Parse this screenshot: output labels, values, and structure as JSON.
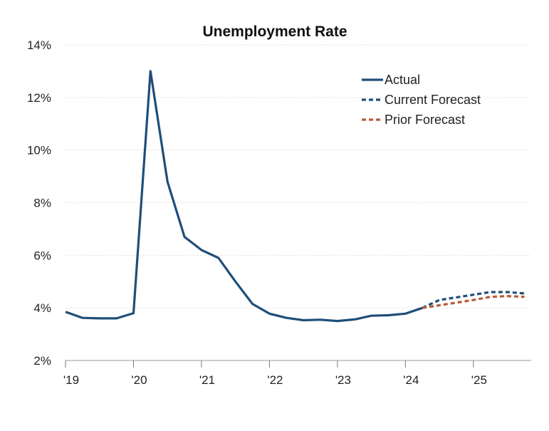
{
  "chart_data": {
    "type": "line",
    "title": "Unemployment Rate",
    "xlabel": "",
    "ylabel": "",
    "ylim": [
      2,
      14
    ],
    "xlim": [
      2019.0,
      2025.85
    ],
    "y_ticks": [
      2,
      4,
      6,
      8,
      10,
      12,
      14
    ],
    "y_tick_labels": [
      "2%",
      "4%",
      "6%",
      "8%",
      "10%",
      "12%",
      "14%"
    ],
    "x_ticks": [
      2019,
      2020,
      2021,
      2022,
      2023,
      2024,
      2025
    ],
    "x_tick_labels": [
      "'19",
      "'20",
      "'21",
      "'22",
      "'23",
      "'24",
      "'25"
    ],
    "grid": "horizontal",
    "legend_position": "top-right",
    "series": [
      {
        "name": "Actual",
        "color": "#1f4e79",
        "style": "solid",
        "x": [
          2019.0,
          2019.25,
          2019.5,
          2019.75,
          2020.0,
          2020.25,
          2020.5,
          2020.75,
          2021.0,
          2021.25,
          2021.5,
          2021.75,
          2022.0,
          2022.25,
          2022.5,
          2022.75,
          2023.0,
          2023.25,
          2023.5,
          2023.75,
          2024.0,
          2024.25
        ],
        "y": [
          3.85,
          3.62,
          3.6,
          3.6,
          3.8,
          13.0,
          8.8,
          6.7,
          6.2,
          5.9,
          5.0,
          4.15,
          3.78,
          3.62,
          3.53,
          3.55,
          3.5,
          3.56,
          3.7,
          3.72,
          3.78,
          4.0
        ]
      },
      {
        "name": "Current Forecast",
        "color": "#1f4e79",
        "style": "dashed",
        "x": [
          2024.25,
          2024.5,
          2024.75,
          2025.0,
          2025.25,
          2025.5,
          2025.75
        ],
        "y": [
          4.0,
          4.3,
          4.4,
          4.5,
          4.6,
          4.6,
          4.55
        ]
      },
      {
        "name": "Prior Forecast",
        "color": "#b85c38",
        "style": "dashed",
        "x": [
          2024.25,
          2024.5,
          2024.75,
          2025.0,
          2025.25,
          2025.5,
          2025.75
        ],
        "y": [
          4.0,
          4.1,
          4.2,
          4.3,
          4.42,
          4.45,
          4.42
        ]
      }
    ]
  }
}
